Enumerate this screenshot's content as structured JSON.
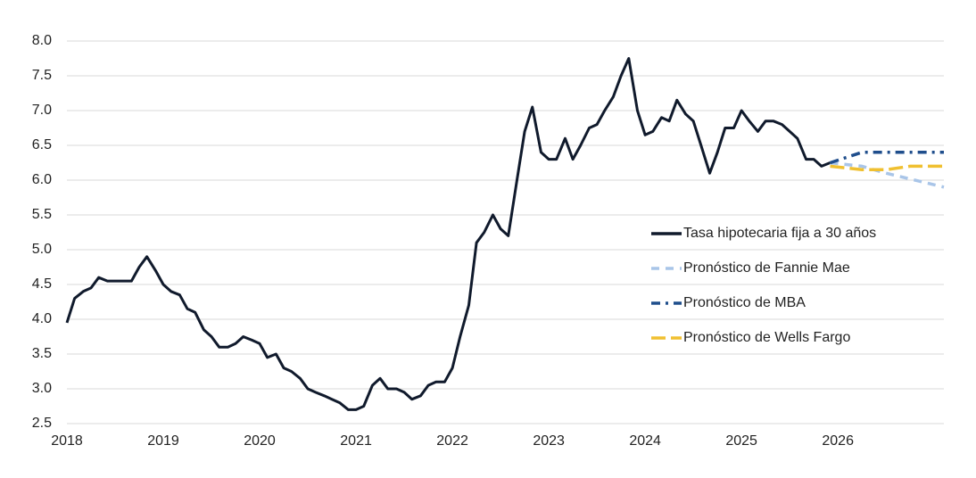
{
  "chart_data": {
    "type": "line",
    "xlim": [
      2018,
      2027.1
    ],
    "xticks": [
      2018,
      2019,
      2020,
      2021,
      2022,
      2023,
      2024,
      2025,
      2026
    ],
    "ylim": [
      2.5,
      8
    ],
    "yticks": [
      {
        "value": 2.5,
        "label": "2.5"
      },
      {
        "value": 3,
        "label": "3.0"
      },
      3.5,
      {
        "value": 4,
        "label": "4.0"
      },
      4.5,
      {
        "value": 5,
        "label": "5.0"
      },
      5.5,
      {
        "value": 6,
        "label": "6.0"
      },
      6.5,
      {
        "value": 7,
        "label": "7.0"
      },
      7.5,
      {
        "value": 8,
        "label": "8.0"
      }
    ],
    "grid": true,
    "legend": "right",
    "series": [
      {
        "name": "Tasa hipotecaria fija a 30 años",
        "color": "#101a2c",
        "dash": "solid",
        "x": [
          2018.0,
          2018.08,
          2018.17,
          2018.25,
          2018.33,
          2018.42,
          2018.5,
          2018.58,
          2018.67,
          2018.75,
          2018.83,
          2018.92,
          2019.0,
          2019.08,
          2019.17,
          2019.25,
          2019.33,
          2019.42,
          2019.5,
          2019.58,
          2019.67,
          2019.75,
          2019.83,
          2019.92,
          2020.0,
          2020.08,
          2020.17,
          2020.25,
          2020.33,
          2020.42,
          2020.5,
          2020.58,
          2020.67,
          2020.75,
          2020.83,
          2020.92,
          2021.0,
          2021.08,
          2021.17,
          2021.25,
          2021.33,
          2021.42,
          2021.5,
          2021.58,
          2021.67,
          2021.75,
          2021.83,
          2021.92,
          2022.0,
          2022.08,
          2022.17,
          2022.25,
          2022.33,
          2022.42,
          2022.5,
          2022.58,
          2022.67,
          2022.75,
          2022.83,
          2022.92,
          2023.0,
          2023.08,
          2023.17,
          2023.25,
          2023.33,
          2023.42,
          2023.5,
          2023.58,
          2023.67,
          2023.75,
          2023.83,
          2023.92,
          2024.0,
          2024.08,
          2024.17,
          2024.25,
          2024.33,
          2024.42,
          2024.5,
          2024.58,
          2024.67,
          2024.75,
          2024.83,
          2024.92,
          2025.0,
          2025.08,
          2025.17,
          2025.25,
          2025.33,
          2025.42,
          2025.5,
          2025.58,
          2025.67,
          2025.75,
          2025.83,
          2025.92
        ],
        "values": [
          3.95,
          4.3,
          4.4,
          4.45,
          4.6,
          4.55,
          4.55,
          4.55,
          4.55,
          4.75,
          4.9,
          4.7,
          4.5,
          4.4,
          4.35,
          4.15,
          4.1,
          3.85,
          3.75,
          3.6,
          3.6,
          3.65,
          3.75,
          3.7,
          3.65,
          3.45,
          3.5,
          3.3,
          3.25,
          3.15,
          3.0,
          2.95,
          2.9,
          2.85,
          2.8,
          2.7,
          2.7,
          2.75,
          3.05,
          3.15,
          3.0,
          3.0,
          2.95,
          2.85,
          2.9,
          3.05,
          3.1,
          3.1,
          3.3,
          3.75,
          4.2,
          5.1,
          5.25,
          5.5,
          5.3,
          5.2,
          6.0,
          6.7,
          7.05,
          6.4,
          6.3,
          6.3,
          6.6,
          6.3,
          6.5,
          6.75,
          6.8,
          7.0,
          7.2,
          7.5,
          7.75,
          7.0,
          6.65,
          6.7,
          6.9,
          6.85,
          7.15,
          6.95,
          6.85,
          6.5,
          6.1,
          6.4,
          6.75,
          6.75,
          7.0,
          6.85,
          6.7,
          6.85,
          6.85,
          6.8,
          6.7,
          6.6,
          6.3,
          6.3,
          6.2,
          6.25
        ]
      },
      {
        "name": "Pronóstico de Fannie Mae",
        "color": "#a9c5e8",
        "dash": "dash",
        "x": [
          2025.92,
          2026.25,
          2026.5,
          2027.1
        ],
        "values": [
          6.25,
          6.2,
          6.1,
          5.9
        ]
      },
      {
        "name": "Pronóstico de MBA",
        "color": "#1f4e8c",
        "dash": "dashdot",
        "x": [
          2025.92,
          2026.25,
          2027.1
        ],
        "values": [
          6.25,
          6.4,
          6.4
        ]
      },
      {
        "name": "Pronóstico de Wells Fargo",
        "color": "#f0c030",
        "dash": "longdash",
        "x": [
          2025.92,
          2026.25,
          2026.5,
          2026.75,
          2027.1
        ],
        "values": [
          6.2,
          6.15,
          6.15,
          6.2,
          6.2
        ]
      }
    ]
  }
}
